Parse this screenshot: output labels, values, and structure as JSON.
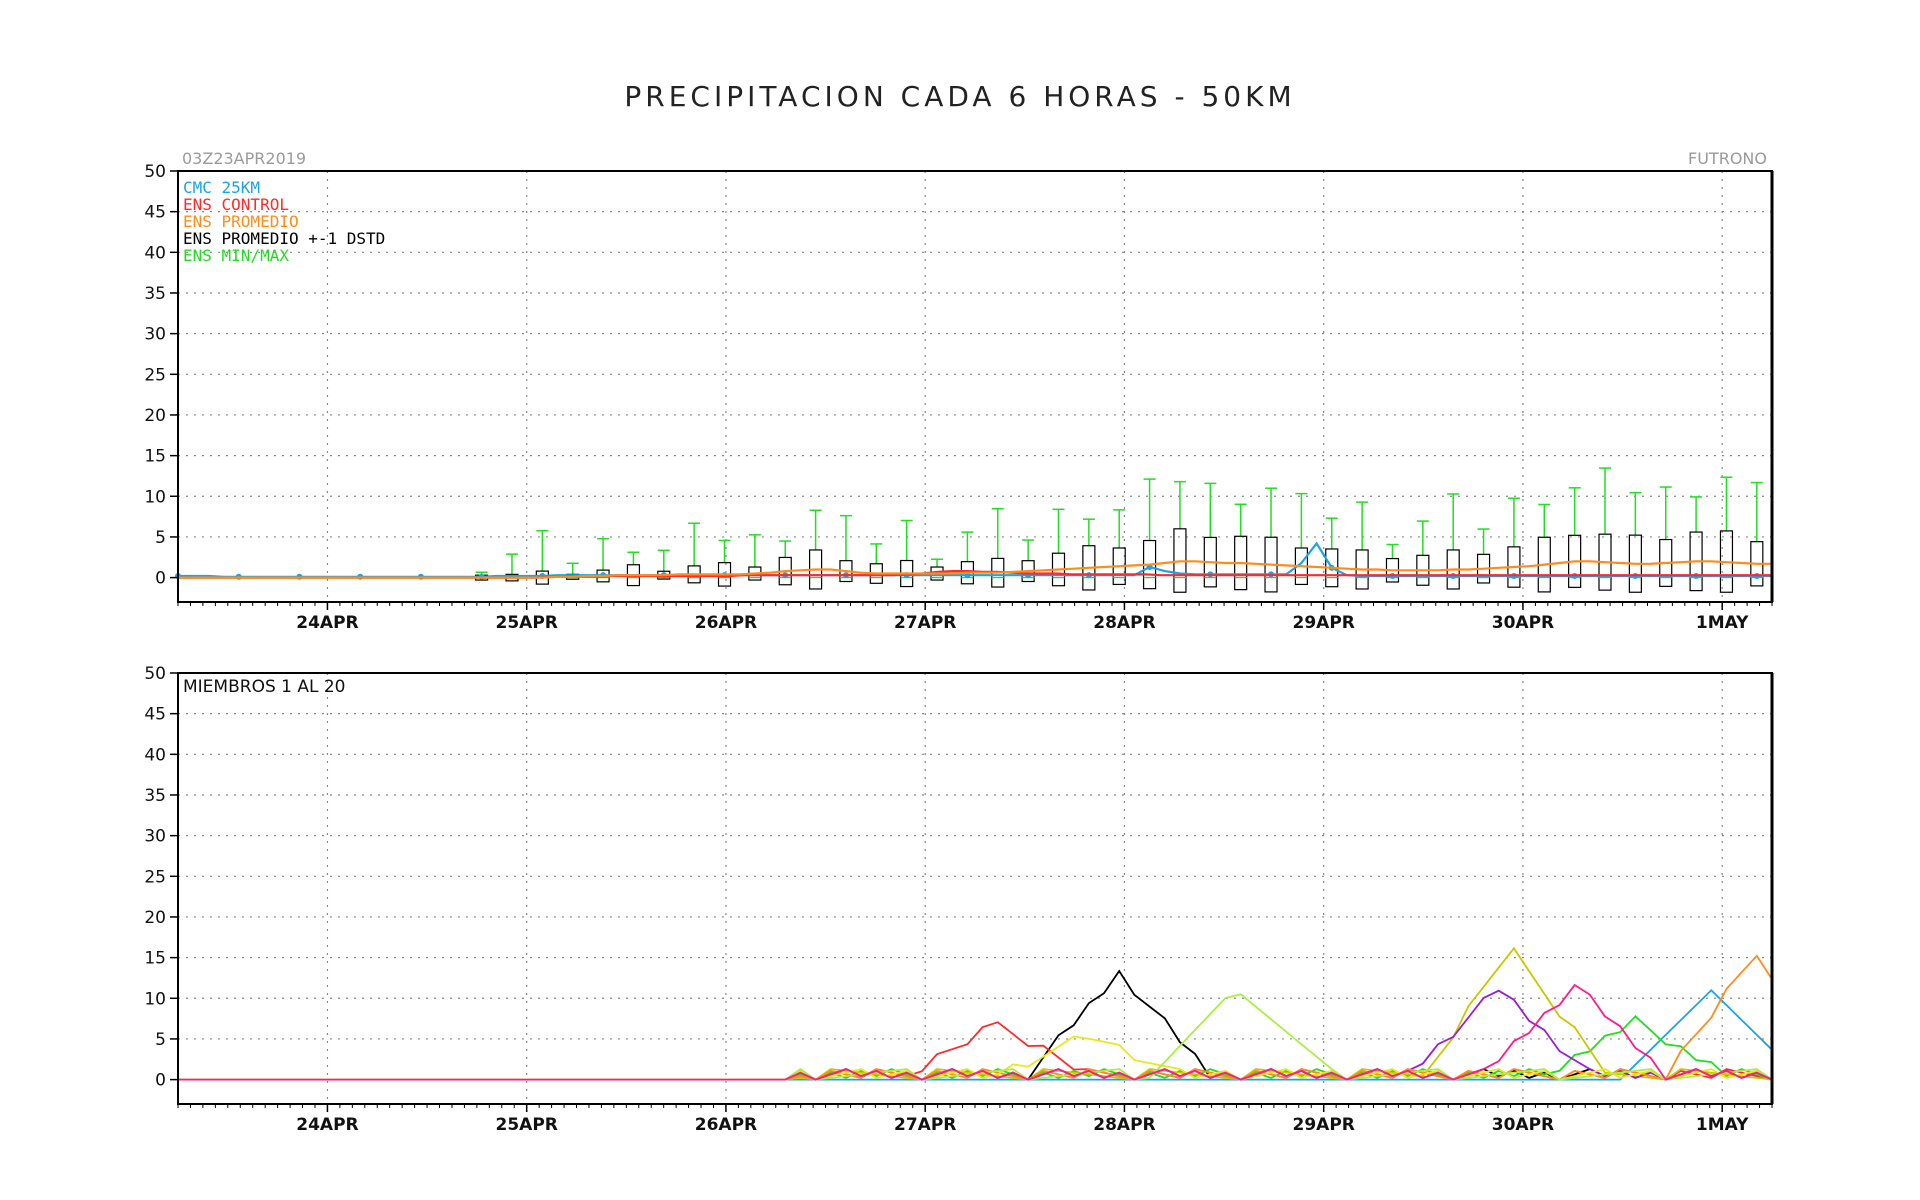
{
  "title": "PRECIPITACION CADA 6 HORAS - 50KM",
  "chart_data": [
    {
      "type": "line",
      "panel": "top",
      "init_label": "03Z23APR2019",
      "location_label": "FUTRONO",
      "ylim": [
        -3,
        50
      ],
      "yticks": [
        0,
        5,
        10,
        15,
        20,
        25,
        30,
        35,
        40,
        45,
        50
      ],
      "x_start": "03Z23APR2019",
      "step_hours": 6,
      "date_ticks": [
        {
          "label": "24APR",
          "step": 3
        },
        {
          "label": "25APR",
          "step": 7
        },
        {
          "label": "26APR",
          "step": 11
        },
        {
          "label": "27APR",
          "step": 15
        },
        {
          "label": "28APR",
          "step": 19
        },
        {
          "label": "29APR",
          "step": 23
        },
        {
          "label": "30APR",
          "step": 27
        },
        {
          "label": "1MAY",
          "step": 31
        }
      ],
      "legend": [
        {
          "label": "CMC 25KM",
          "color": "#1aa3e8"
        },
        {
          "label": "ENS CONTROL",
          "color": "#ff2a2a"
        },
        {
          "label": "ENS PROMEDIO",
          "color": "#ff8c1a"
        },
        {
          "label": "ENS PROMEDIO +-1 DSTD",
          "color": "#000000"
        },
        {
          "label": "ENS MIN/MAX",
          "color": "#22dd22"
        }
      ],
      "series": [
        {
          "name": "CMC 25KM",
          "color": "#1aa3e8",
          "values": [
            0.2,
            0.2,
            0.2,
            0.1,
            0.1,
            0.1,
            0.1,
            0.1,
            0.1,
            0.1,
            0.1,
            0.1,
            0.1,
            0.1,
            0.1,
            0.1,
            0.1,
            0.1,
            0.1,
            0.1,
            0.1,
            0.2,
            0.2,
            0.2,
            0.2,
            0.3,
            0.3,
            0.3,
            0.3,
            0.3,
            0.3,
            0.3,
            0.3,
            0.3,
            0.3,
            0.3,
            0.3,
            0.3,
            0.3,
            0.3,
            0.3,
            0.3,
            0.3,
            0.3,
            0.3,
            0.3,
            0.3,
            0.3,
            0.3,
            0.3,
            0.3,
            0.3,
            0.3,
            0.3,
            0.3,
            0.3,
            0.3,
            0.3,
            0.3,
            0.3,
            0.3,
            0.3,
            0.3,
            0.3,
            1.3,
            0.8,
            0.5,
            0.4,
            0.4,
            0.4,
            0.4,
            0.4,
            0.4,
            0.4,
            1.8,
            4.2,
            1.2,
            0.3,
            0.2,
            0.2,
            0.2,
            0.2,
            0.2,
            0.2,
            0.2,
            0.2,
            0.2,
            0.2,
            0.2,
            0.2,
            0.2,
            0.2,
            0.2,
            0.2,
            0.2,
            0.2,
            0.2,
            0.2,
            0.2,
            0.2,
            0.2,
            0.2,
            0.2,
            0.2,
            0.2,
            0.2
          ]
        },
        {
          "name": "ENS CONTROL",
          "color": "#ff2a2a",
          "values": [
            0,
            0,
            0,
            0,
            0,
            0,
            0,
            0,
            0,
            0,
            0,
            0,
            0,
            0,
            0,
            0,
            0,
            0,
            0,
            0,
            0,
            0,
            0,
            0,
            0,
            0.1,
            0.1,
            0.1,
            0.1,
            0.2,
            0.2,
            0.2,
            0.2,
            0.2,
            0.2,
            0.2,
            0.2,
            0.2,
            0.3,
            0.3,
            0.3,
            0.3,
            0.3,
            0.3,
            0.3,
            0.3,
            0.3,
            0.3,
            0.3,
            0.4,
            0.5,
            0.7,
            0.8,
            0.8,
            0.7,
            0.7,
            0.6,
            0.5,
            0.5,
            0.5,
            0.4,
            0.4,
            0.4,
            0.4,
            0.4,
            0.4,
            0.3,
            0.3,
            0.3,
            0.3,
            0.3,
            0.3,
            0.3,
            0.3,
            0.3,
            0.3,
            0.3,
            0.3,
            0.3,
            0.3,
            0.3,
            0.3,
            0.3,
            0.3,
            0.3,
            0.3,
            0.3,
            0.3,
            0.3,
            0.3,
            0.3,
            0.3,
            0.3,
            0.3,
            0.3,
            0.3,
            0.3,
            0.3,
            0.3,
            0.3,
            0.3,
            0.3,
            0.3,
            0.3,
            0.3,
            0.3,
            0.3,
            0.3
          ]
        },
        {
          "name": "ENS PROMEDIO",
          "color": "#ff8c1a",
          "values": [
            0,
            0,
            0,
            0,
            0,
            0,
            0,
            0,
            0,
            0,
            0,
            0,
            0,
            0,
            0,
            0,
            0,
            0,
            0,
            0,
            0,
            0,
            0,
            0,
            0,
            0.1,
            0.1,
            0.2,
            0.2,
            0.3,
            0.3,
            0.3,
            0.3,
            0.4,
            0.4,
            0.4,
            0.4,
            0.4,
            0.5,
            0.6,
            0.8,
            0.9,
            1.0,
            1.0,
            0.8,
            0.6,
            0.5,
            0.5,
            0.5,
            0.5,
            0.5,
            0.5,
            0.6,
            0.6,
            0.6,
            0.7,
            0.8,
            0.9,
            1.0,
            1.1,
            1.2,
            1.3,
            1.4,
            1.5,
            1.6,
            1.8,
            2.0,
            2.0,
            1.9,
            1.8,
            1.8,
            1.7,
            1.6,
            1.5,
            1.4,
            1.3,
            1.2,
            1.1,
            1.0,
            1.0,
            0.9,
            0.9,
            0.9,
            0.9,
            1.0,
            1.0,
            1.1,
            1.2,
            1.3,
            1.4,
            1.6,
            1.8,
            2.0,
            2.0,
            1.9,
            1.8,
            1.7,
            1.7,
            1.8,
            1.9,
            2.0,
            2.0,
            1.9,
            1.8,
            1.7,
            1.7
          ]
        }
      ]
    },
    {
      "type": "line",
      "panel": "bottom",
      "label": "MIEMBROS 1 AL 20",
      "ylim": [
        -3,
        50
      ],
      "yticks": [
        0,
        5,
        10,
        15,
        20,
        25,
        30,
        35,
        40,
        45,
        50
      ],
      "x_start": "03Z23APR2019",
      "step_hours": 6,
      "date_ticks": [
        {
          "label": "24APR",
          "step": 3
        },
        {
          "label": "25APR",
          "step": 7
        },
        {
          "label": "26APR",
          "step": 11
        },
        {
          "label": "27APR",
          "step": 15
        },
        {
          "label": "28APR",
          "step": 19
        },
        {
          "label": "29APR",
          "step": 23
        },
        {
          "label": "30APR",
          "step": 27
        },
        {
          "label": "1MAY",
          "step": 31
        }
      ]
    }
  ]
}
